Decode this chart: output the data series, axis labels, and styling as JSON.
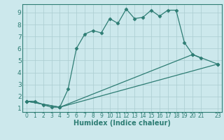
{
  "xlabel": "Humidex (Indice chaleur)",
  "bg_color": "#cce8ec",
  "line_color": "#2e7d74",
  "grid_color": "#aaccd0",
  "xlim": [
    -0.5,
    23.5
  ],
  "ylim": [
    0.7,
    9.7
  ],
  "xticks": [
    0,
    1,
    2,
    3,
    4,
    5,
    6,
    7,
    8,
    9,
    10,
    11,
    12,
    13,
    14,
    15,
    16,
    17,
    18,
    19,
    20,
    21,
    23
  ],
  "xtick_labels": [
    "0",
    "1",
    "2",
    "3",
    "4",
    "5",
    "6",
    "7",
    "8",
    "9",
    "10",
    "11",
    "12",
    "13",
    "14",
    "15",
    "16",
    "17",
    "18",
    "19",
    "20",
    "21",
    "23"
  ],
  "yticks": [
    1,
    2,
    3,
    4,
    5,
    6,
    7,
    8,
    9
  ],
  "series1_x": [
    0,
    1,
    2,
    3,
    4,
    5,
    6,
    7,
    8,
    9,
    10,
    11,
    12,
    13,
    14,
    15,
    16,
    17,
    18,
    19,
    20,
    21
  ],
  "series1_y": [
    1.6,
    1.6,
    1.3,
    1.1,
    1.1,
    2.6,
    6.0,
    7.2,
    7.5,
    7.3,
    8.5,
    8.1,
    9.3,
    8.5,
    8.6,
    9.2,
    8.7,
    9.2,
    9.2,
    6.5,
    5.5,
    5.2
  ],
  "series2_x": [
    0,
    4,
    20,
    23
  ],
  "series2_y": [
    1.6,
    1.1,
    5.5,
    4.7
  ],
  "series3_x": [
    0,
    4,
    23
  ],
  "series3_y": [
    1.6,
    1.1,
    4.7
  ],
  "marker_size": 2.5,
  "linewidth": 0.9
}
